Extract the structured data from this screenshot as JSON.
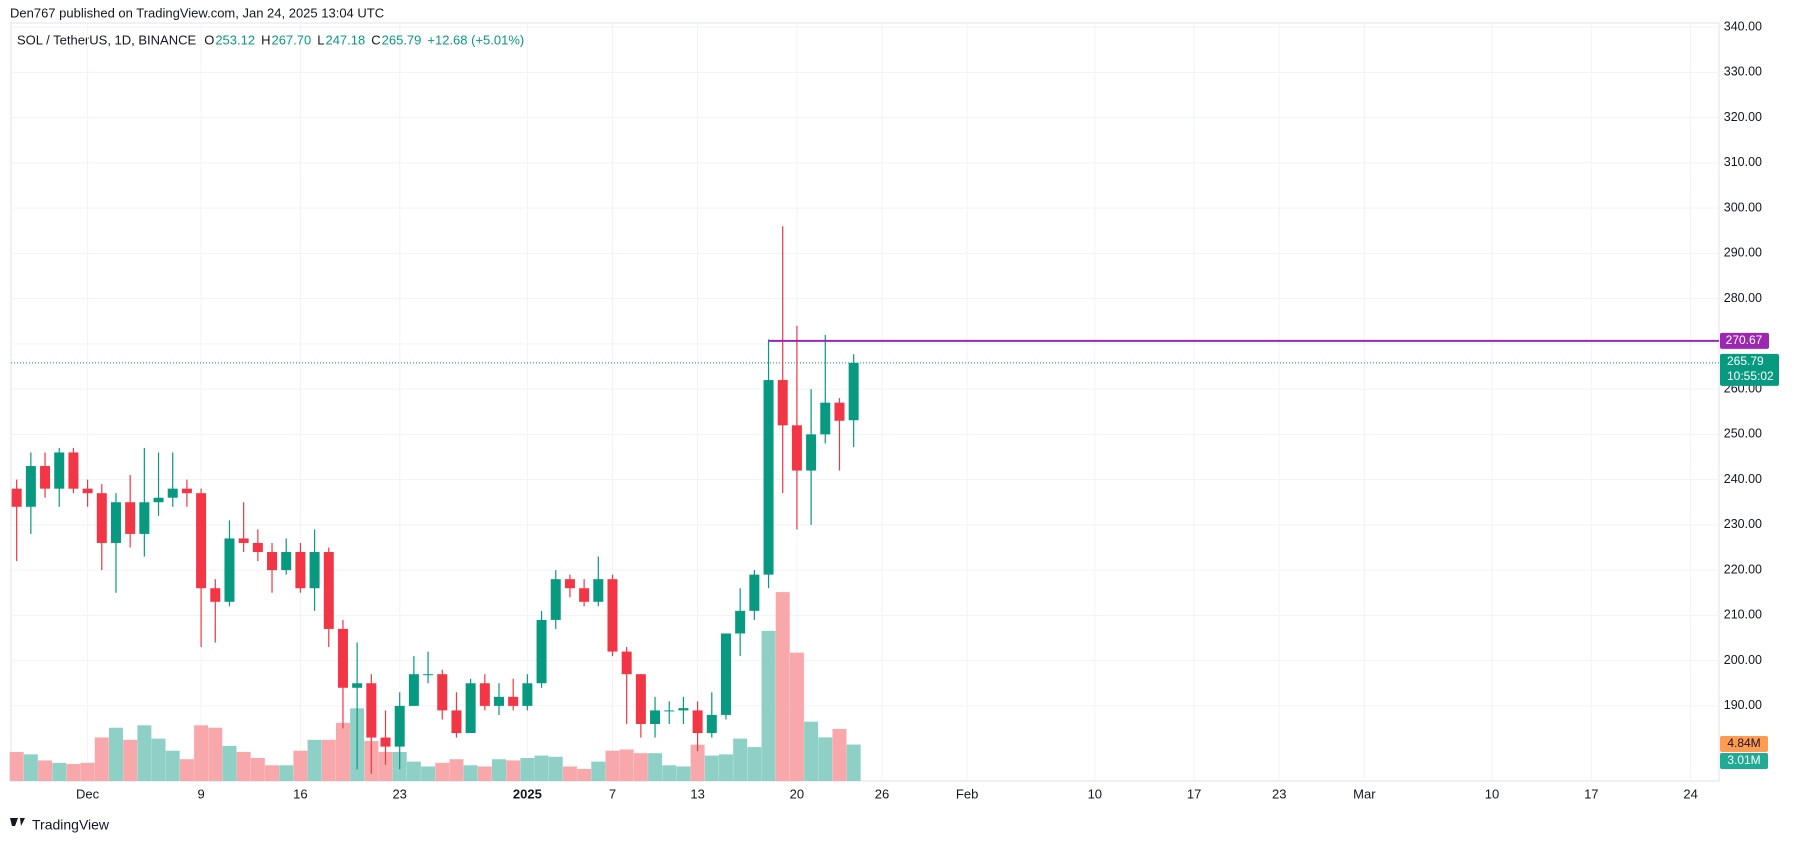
{
  "header": "Den767 published on TradingView.com, Jan 24, 2025 13:04 UTC",
  "footer": "TradingView",
  "chart_data": {
    "type": "candlestick",
    "title": "SOL / TetherUS, 1D, BINANCE",
    "legend": [
      {
        "key": "O",
        "text": "253.12"
      },
      {
        "key": "H",
        "text": "267.70"
      },
      {
        "key": "L",
        "text": "247.18"
      },
      {
        "key": "C",
        "text": "265.79"
      }
    ],
    "change": "+12.68 (+5.01%)",
    "up_color": "#089981",
    "down_color": "#f23645",
    "x": [
      0,
      1,
      2,
      3,
      4,
      5,
      6,
      7,
      8,
      9,
      10,
      11,
      12,
      13,
      14,
      15,
      16,
      17,
      18,
      19,
      20,
      21,
      22,
      23,
      24,
      25,
      26,
      27,
      28,
      29,
      30,
      31,
      32,
      33,
      34,
      35,
      36,
      37,
      38,
      39,
      40,
      41,
      42,
      43,
      44,
      45,
      46,
      47,
      48,
      49,
      50,
      51,
      52,
      53,
      54,
      55,
      56,
      57,
      58,
      59
    ],
    "open": [
      238,
      234,
      243,
      238,
      246,
      238,
      237,
      226,
      235,
      228,
      235,
      236,
      238,
      237,
      216,
      213,
      227,
      226,
      224,
      220,
      224,
      216,
      224,
      207,
      194,
      195,
      183,
      181,
      190,
      197,
      197,
      189,
      184,
      195,
      190,
      192,
      190,
      195,
      209,
      218,
      216,
      213,
      218,
      202,
      197,
      186,
      189,
      189,
      189,
      184,
      188,
      206,
      211,
      219,
      262,
      252,
      242,
      250,
      257,
      253.12
    ],
    "high": [
      240,
      246,
      246,
      247,
      247,
      240,
      239,
      237,
      241,
      247,
      246,
      246,
      240,
      238,
      218,
      231,
      235,
      229,
      226,
      227,
      226,
      229,
      225,
      209,
      204,
      197,
      189,
      193,
      201,
      202,
      198,
      193,
      196,
      197,
      195,
      196,
      197,
      211,
      220,
      219,
      218,
      223,
      219,
      203,
      197,
      192,
      191,
      192,
      191,
      193,
      206,
      216,
      220,
      271,
      296,
      274,
      260,
      272,
      258,
      267.7
    ],
    "low": [
      222,
      228,
      236,
      234,
      237,
      234,
      220,
      215,
      225,
      223,
      232,
      234,
      234,
      203,
      204,
      212,
      224,
      222,
      215,
      219,
      215,
      211,
      203,
      185,
      176,
      175,
      177,
      176,
      190,
      195,
      187,
      183,
      184,
      189,
      188,
      189,
      189,
      194,
      207,
      214,
      212,
      212,
      201,
      186,
      183,
      183,
      186,
      186,
      180,
      183,
      187,
      201,
      209,
      216,
      237,
      229,
      230,
      248,
      242,
      247.18
    ],
    "close": [
      234,
      243,
      238,
      246,
      238,
      237,
      226,
      235,
      228,
      235,
      236,
      238,
      237,
      216,
      213,
      227,
      226,
      224,
      220,
      224,
      216,
      224,
      207,
      194,
      195,
      183,
      181,
      190,
      197,
      197,
      189,
      184,
      195,
      190,
      192,
      190,
      195,
      209,
      218,
      216,
      213,
      218,
      202,
      197,
      186,
      189,
      189,
      189.5,
      184,
      188,
      206,
      211,
      219,
      262,
      252,
      242,
      250,
      257,
      253,
      265.79
    ],
    "volume": {
      "values": [
        2.4,
        2.2,
        1.7,
        1.5,
        1.4,
        1.5,
        3.6,
        4.4,
        3.4,
        4.6,
        3.5,
        2.5,
        1.8,
        4.6,
        4.4,
        2.9,
        2.4,
        1.9,
        1.3,
        1.3,
        2.5,
        3.4,
        3.4,
        4.8,
        6.0,
        3.3,
        2.4,
        2.4,
        1.6,
        1.2,
        1.5,
        1.8,
        1.3,
        1.2,
        1.8,
        1.7,
        1.9,
        2.1,
        2.0,
        1.2,
        1.0,
        1.6,
        2.5,
        2.6,
        2.3,
        2.3,
        1.3,
        1.2,
        3.0,
        2.1,
        2.2,
        3.5,
        2.8,
        12.4,
        15.6,
        10.6,
        4.9,
        3.6,
        4.3,
        3.01
      ],
      "ylim": [
        0,
        62.6
      ],
      "ma_value": 4.84,
      "ma_label": "4.84M",
      "last_label": "3.01M",
      "up_color": "#8fd0c6",
      "down_color": "#f8a8aa",
      "ma_color": "#ff9b52"
    },
    "xlim": [
      -0.4,
      120
    ],
    "ylim": [
      173.4,
      340.9
    ],
    "xticks": [
      {
        "value": 5,
        "label": "Dec"
      },
      {
        "value": 13,
        "label": "9"
      },
      {
        "value": 20,
        "label": "16"
      },
      {
        "value": 27,
        "label": "23"
      },
      {
        "value": 36,
        "label": "2025"
      },
      {
        "value": 42,
        "label": "7"
      },
      {
        "value": 48,
        "label": "13"
      },
      {
        "value": 55,
        "label": "20"
      },
      {
        "value": 61,
        "label": "26"
      },
      {
        "value": 67,
        "label": "Feb"
      },
      {
        "value": 76,
        "label": "10"
      },
      {
        "value": 83,
        "label": "17"
      },
      {
        "value": 89,
        "label": "23"
      },
      {
        "value": 95,
        "label": "Mar"
      },
      {
        "value": 104,
        "label": "10"
      },
      {
        "value": 111,
        "label": "17"
      },
      {
        "value": 118,
        "label": "24"
      }
    ],
    "yticks": [
      {
        "value": 190,
        "label": "190.00"
      },
      {
        "value": 200,
        "label": "200.00"
      },
      {
        "value": 210,
        "label": "210.00"
      },
      {
        "value": 220,
        "label": "220.00"
      },
      {
        "value": 230,
        "label": "230.00"
      },
      {
        "value": 240,
        "label": "240.00"
      },
      {
        "value": 250,
        "label": "250.00"
      },
      {
        "value": 260,
        "label": "260.00"
      },
      {
        "value": 270,
        "label": "270.00"
      },
      {
        "value": 280,
        "label": "280.00"
      },
      {
        "value": 290,
        "label": "290.00"
      },
      {
        "value": 300,
        "label": "300.00"
      },
      {
        "value": 310,
        "label": "310.00"
      },
      {
        "value": 320,
        "label": "320.00"
      },
      {
        "value": 330,
        "label": "330.00"
      },
      {
        "value": 340,
        "label": "340.00"
      }
    ],
    "grid": true,
    "hline": {
      "value": 270.67,
      "start": 53,
      "color": "#9c27b0"
    },
    "last_price": {
      "value": 265.79,
      "countdown": "10:55:02"
    }
  }
}
